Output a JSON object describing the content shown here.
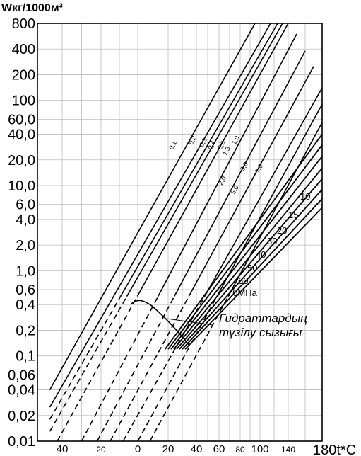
{
  "chart_data": {
    "type": "line",
    "title": "",
    "ylabel": "Wкг/1000м³",
    "xlabel": "180t*C",
    "y_scale": "log",
    "ylim": [
      0.01,
      800
    ],
    "grid": true,
    "y_ticks": [
      "800",
      "400",
      "200",
      "100",
      "60,0",
      "40,0",
      "20,0",
      "10,0",
      "6,0",
      "4,0",
      "2,0",
      "1,0",
      "0,6",
      "0,4",
      "0,2",
      "0,1",
      "0,06",
      "0,04",
      "0,02",
      "0,01"
    ],
    "y_tick_values": [
      800,
      400,
      200,
      100,
      60,
      40,
      20,
      10,
      6,
      4,
      2,
      1,
      0.6,
      0.4,
      0.2,
      0.1,
      0.06,
      0.04,
      0.02,
      0.01
    ],
    "x_ticks": [
      "40",
      "20",
      "0",
      "20",
      "40",
      "60",
      "80",
      "100",
      "140"
    ],
    "x_tick_values": [
      -40,
      -20,
      0,
      20,
      40,
      60,
      80,
      100,
      140
    ],
    "upper_labels": [
      "0,1",
      "0,2",
      "0,3",
      "0,4",
      "0,6",
      "1,0",
      "1,5",
      "2,0",
      "3,0",
      "5,0",
      "7,0"
    ],
    "lower_labels": [
      "10",
      "15",
      "20",
      "30",
      "40",
      "50",
      "60",
      "70МПа"
    ],
    "series": [
      {
        "name": "0,1",
        "x": [
          -45,
          95
        ],
        "y": [
          0.04,
          800
        ]
      },
      {
        "name": "0,2",
        "x": [
          -45,
          115
        ],
        "y": [
          0.025,
          800
        ]
      },
      {
        "name": "0,3",
        "x": [
          -45,
          125
        ],
        "y": [
          0.018,
          800
        ]
      },
      {
        "name": "0,4",
        "x": [
          -45,
          132
        ],
        "y": [
          0.013,
          800
        ]
      },
      {
        "name": "0,6",
        "x": [
          -42,
          140
        ],
        "y": [
          0.01,
          800
        ]
      },
      {
        "name": "1,0",
        "x": [
          -30,
          150
        ],
        "y": [
          0.01,
          600
        ]
      },
      {
        "name": "1,5",
        "x": [
          -22,
          160
        ],
        "y": [
          0.01,
          380
        ]
      },
      {
        "name": "2,0",
        "x": [
          -15,
          170
        ],
        "y": [
          0.01,
          250
        ]
      },
      {
        "name": "3,0",
        "x": [
          -8,
          180
        ],
        "y": [
          0.01,
          140
        ]
      },
      {
        "name": "5,0",
        "x": [
          0,
          180
        ],
        "y": [
          0.01,
          90
        ]
      },
      {
        "name": "7,0",
        "x": [
          8,
          180
        ],
        "y": [
          0.01,
          55
        ]
      },
      {
        "name": "10",
        "x": [
          18,
          180
        ],
        "y": [
          0.12,
          40
        ]
      },
      {
        "name": "15",
        "x": [
          20,
          180
        ],
        "y": [
          0.12,
          30
        ]
      },
      {
        "name": "20",
        "x": [
          22,
          180
        ],
        "y": [
          0.12,
          22
        ]
      },
      {
        "name": "30",
        "x": [
          24,
          180
        ],
        "y": [
          0.12,
          16
        ]
      },
      {
        "name": "40",
        "x": [
          26,
          180
        ],
        "y": [
          0.12,
          12
        ]
      },
      {
        "name": "50",
        "x": [
          28,
          180
        ],
        "y": [
          0.12,
          9
        ]
      },
      {
        "name": "60",
        "x": [
          30,
          180
        ],
        "y": [
          0.12,
          7
        ]
      },
      {
        "name": "70МПа",
        "x": [
          32,
          180
        ],
        "y": [
          0.12,
          5.5
        ]
      }
    ],
    "annotation": {
      "line1": "Гидраттардың",
      "line2": "түзілу сызығы"
    }
  }
}
